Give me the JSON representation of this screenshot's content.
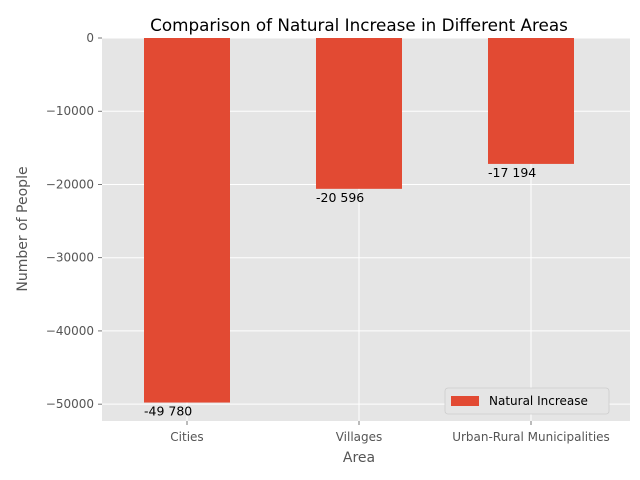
{
  "chart_data": {
    "type": "bar",
    "title": "Comparison of Natural Increase in Different Areas",
    "xlabel": "Area",
    "ylabel": "Number of People",
    "categories": [
      "Cities",
      "Villages",
      "Urban-Rural Municipalities"
    ],
    "series": [
      {
        "name": "Natural Increase",
        "values": [
          -49780,
          -20596,
          -17194
        ],
        "labels": [
          "-49 780",
          "-20 596",
          "-17 194"
        ]
      }
    ],
    "ylim": [
      -52300,
      0
    ],
    "yticks": [
      0,
      -10000,
      -20000,
      -30000,
      -40000,
      -50000
    ],
    "ytick_labels": [
      "0",
      "−10000",
      "−20000",
      "−30000",
      "−40000",
      "−50000"
    ],
    "grid": true,
    "legend_position": "lower-right",
    "colors": {
      "bar": "#E24A33",
      "plot_background": "#E5E5E5",
      "grid": "#FFFFFF"
    }
  }
}
